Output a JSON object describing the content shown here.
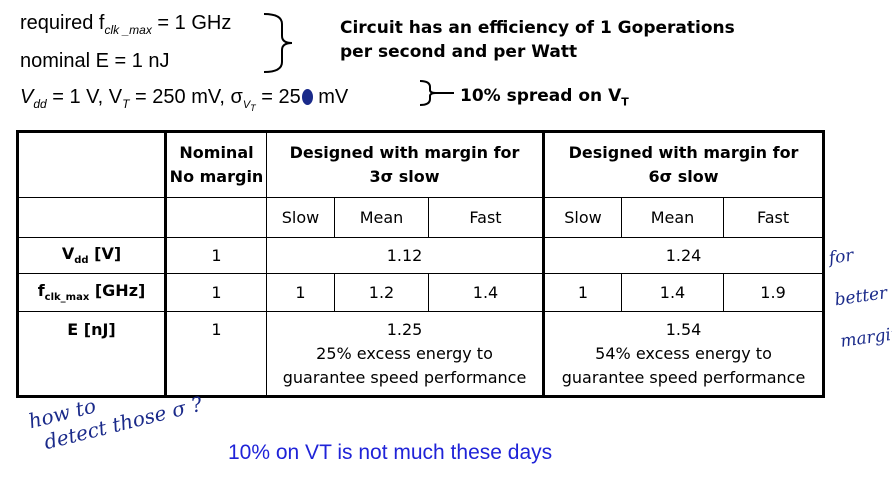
{
  "header": {
    "line1_prefix": "required f",
    "line1_sub": "clk _max",
    "line1_suffix": " = 1 GHz",
    "line2": "nominal E = 1 nJ",
    "line3_a": "V",
    "line3_a_sub": "dd",
    "line3_b": " = 1 V, V",
    "line3_b_sub": "T",
    "line3_c": " =  250 mV, σ",
    "line3_c_sub": "V",
    "line3_c_subsub": "T",
    "line3_d": " =  25",
    "line3_e": " mV",
    "efficiency_note_1": "Circuit has an efficiency of 1 Goperations",
    "efficiency_note_2": "per second and per Watt",
    "spread_note_prefix": "10% spread on V",
    "spread_note_sub": "T"
  },
  "table": {
    "col_nominal_1": "Nominal",
    "col_nominal_2": "No margin",
    "col_3sigma_1": "Designed with margin for",
    "col_3sigma_2": "3σ slow",
    "col_6sigma_1": "Designed with margin for",
    "col_6sigma_2": "6σ slow",
    "sub_slow": "Slow",
    "sub_mean": "Mean",
    "sub_fast": "Fast",
    "row_vdd_label": "V",
    "row_vdd_sub": "dd",
    "row_vdd_unit": " [V]",
    "row_vdd_nominal": "1",
    "row_vdd_3sigma": "1.12",
    "row_vdd_6sigma": "1.24",
    "row_fclk_label": "f",
    "row_fclk_sub": "clk_max",
    "row_fclk_unit": " [GHz]",
    "row_fclk_nominal": "1",
    "row_fclk_3s_slow": "1",
    "row_fclk_3s_mean": "1.2",
    "row_fclk_3s_fast": "1.4",
    "row_fclk_6s_slow": "1",
    "row_fclk_6s_mean": "1.4",
    "row_fclk_6s_fast": "1.9",
    "row_e_label": "E [nJ]",
    "row_e_nominal": "1",
    "row_e_3sigma_1": "1.25",
    "row_e_3sigma_2": "25% excess energy to",
    "row_e_3sigma_3": "guarantee speed performance",
    "row_e_6sigma_1": "1.54",
    "row_e_6sigma_2": "54% excess energy to",
    "row_e_6sigma_3": "guarantee speed performance"
  },
  "annotations": {
    "hand_right_1": "for",
    "hand_right_2": "better",
    "hand_right_3": "margin",
    "hand_bottom_1": "how to",
    "hand_bottom_2": "detect those σ ?",
    "blue_note": "10% on VT is not much these days"
  }
}
